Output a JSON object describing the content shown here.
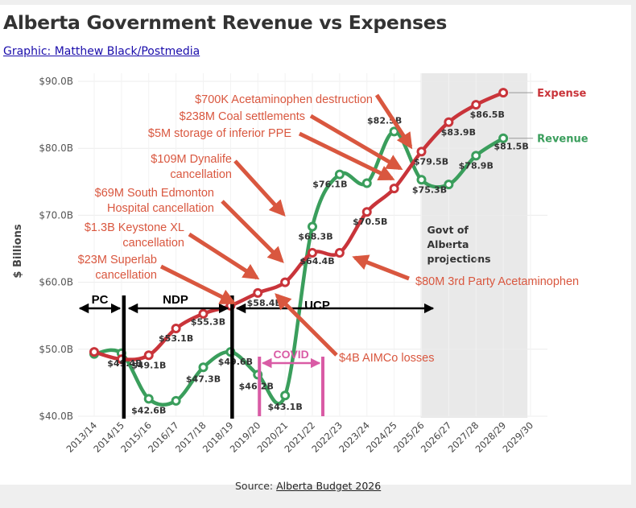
{
  "header": {
    "title": "Alberta Government Revenue vs Expenses",
    "credit": "Graphic: Matthew Black/Postmedia"
  },
  "footer": {
    "source_prefix": "Source: ",
    "source_link": "Alberta Budget 2026"
  },
  "colors": {
    "expense": "#c9343a",
    "revenue": "#3a9e5c",
    "annotation": "#d9573f",
    "covid": "#d95ba5",
    "projection_band": "#e9e9e9",
    "era_lines": "#000000"
  },
  "chart_data": {
    "type": "line",
    "title": "Alberta Government Revenue vs Expenses",
    "xlabel": "",
    "ylabel": "$ Billions",
    "ylim": [
      40,
      90
    ],
    "yticks": [
      40,
      50,
      60,
      70,
      80,
      90
    ],
    "ytick_labels": [
      "$40.0B",
      "$50.0B",
      "$60.0B",
      "$70.0B",
      "$80.0B",
      "$90.0B"
    ],
    "grid": true,
    "categories": [
      "2013/14",
      "2014/15",
      "2015/16",
      "2016/17",
      "2017/18",
      "2018/19",
      "2019/20",
      "2020/21",
      "2021/22",
      "2022/23",
      "2023/24",
      "2024/25",
      "2025/26",
      "2026/27",
      "2027/28",
      "2028/29",
      "2029/30"
    ],
    "series": [
      {
        "name": "Expense",
        "color": "#c9343a",
        "values": [
          49.6,
          48.5,
          49.1,
          53.1,
          55.3,
          56.5,
          58.4,
          60.0,
          64.4,
          64.4,
          70.5,
          74.0,
          79.5,
          83.9,
          86.5,
          88.3,
          null
        ],
        "labels": [
          null,
          null,
          "$49.1B",
          "$53.1B",
          "$55.3B",
          null,
          "$58.4B",
          null,
          "$64.4B",
          null,
          "$70.5B",
          null,
          "$79.5B",
          "$83.9B",
          "$86.5B",
          null,
          null
        ]
      },
      {
        "name": "Revenue",
        "color": "#3a9e5c",
        "values": [
          49.3,
          49.4,
          42.6,
          42.3,
          47.3,
          49.6,
          46.2,
          43.1,
          68.3,
          76.1,
          74.8,
          82.5,
          75.3,
          74.6,
          78.9,
          81.5,
          null
        ],
        "labels": [
          null,
          "$49.4B",
          "$42.6B",
          null,
          "$47.3B",
          "$49.6B",
          "$46.2B",
          "$43.1B",
          "$68.3B",
          "$76.1B",
          null,
          "$82.5B",
          "$75.3B",
          null,
          "$78.9B",
          "$81.5B",
          null
        ]
      }
    ],
    "legend": [
      {
        "name": "Expense",
        "placement": "end-of-line"
      },
      {
        "name": "Revenue",
        "placement": "end-of-line"
      }
    ],
    "projection_band": {
      "from": "2025/26",
      "to": "2028/29",
      "label_lines": [
        "Govt of",
        "Alberta",
        "projections"
      ]
    },
    "eras": [
      {
        "label": "PC",
        "from": "2013/14",
        "to": "2014/15"
      },
      {
        "label": "NDP",
        "from": "2014/15",
        "to": "2018/19"
      },
      {
        "label": "UCP",
        "from": "2018/19",
        "to": "2025/26"
      }
    ],
    "era_dividers": [
      "2014/15",
      "2018/19"
    ],
    "covid": {
      "label": "COVID",
      "from": "2019/20",
      "to": "2021/22"
    },
    "annotations": [
      {
        "lines": [
          "$700K Acetaminophen destruction"
        ],
        "target": "2025/26"
      },
      {
        "lines": [
          "$238M Coal settlements"
        ],
        "target": "2024/25"
      },
      {
        "lines": [
          "$5M storage of  inferior PPE"
        ],
        "target": "2024/25"
      },
      {
        "lines": [
          "$109M Dynalife",
          "cancellation"
        ],
        "target": "2021/22"
      },
      {
        "lines": [
          "$69M South Edmonton",
          "Hospital cancellation"
        ],
        "target": "2020/21"
      },
      {
        "lines": [
          "$1.3B Keystone XL",
          "cancellation"
        ],
        "target": "2019/20"
      },
      {
        "lines": [
          "$23M Superlab",
          "cancellation"
        ],
        "target": "2018/19"
      },
      {
        "lines": [
          "$80M 3rd Party Acetaminophen"
        ],
        "target": "2022/23"
      },
      {
        "lines": [
          "$4B AIMCo losses"
        ],
        "target": "2019/20"
      }
    ]
  }
}
